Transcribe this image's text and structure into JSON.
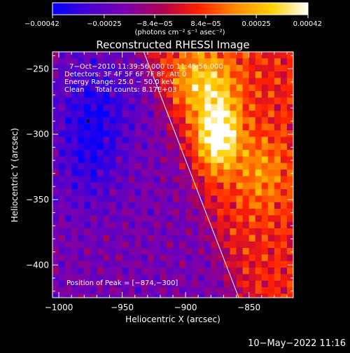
{
  "chart_data": {
    "type": "heatmap",
    "title": "Reconstructed RHESSI Image",
    "xlabel": "Heliocentric X (arcsec)",
    "ylabel": "Heliocentric Y (arcsec)",
    "xlim": [
      -1005,
      -815
    ],
    "ylim": [
      -425,
      -237
    ],
    "x_ticks": [
      {
        "value": -1000,
        "label": "−1000"
      },
      {
        "value": -950,
        "label": "−950"
      },
      {
        "value": -900,
        "label": "−900"
      },
      {
        "value": -850,
        "label": "−850"
      }
    ],
    "y_ticks": [
      {
        "value": -250,
        "label": "−250"
      },
      {
        "value": -300,
        "label": "−300"
      },
      {
        "value": -350,
        "label": "−350"
      },
      {
        "value": -400,
        "label": "−400"
      }
    ],
    "colorbar": {
      "range": [
        -0.00042,
        0.00042
      ],
      "ticks": [
        {
          "value": -0.00042,
          "label": "−0.00042"
        },
        {
          "value": -0.00025,
          "label": "−0.00025"
        },
        {
          "value": -8.4e-05,
          "label": "−8.4e−05"
        },
        {
          "value": 8.4e-05,
          "label": "8.4e−05"
        },
        {
          "value": 0.00025,
          "label": "0.00025"
        },
        {
          "value": 0.00042,
          "label": "0.00042"
        }
      ],
      "unit_label": "(photons cm⁻² s⁻¹ asec⁻²)",
      "colors": [
        "#0000ff",
        "#4a00d0",
        "#7a00b0",
        "#b00050",
        "#ff2000",
        "#ff8a00",
        "#ffd000",
        "#ffffff"
      ]
    },
    "annotations": [
      "7−Oct−2010 11:39:56.000 to 11:45:56.000",
      "Detectors: 3F 4F 5F 6F 7F 8F, Att 0",
      "Energy Range: 25.0 − 50.0 keV",
      "Clean     Total counts: 8.17E+03",
      "Position of Peak = [−874,−300]"
    ],
    "limb_line": {
      "x": [
        -933,
        -858
      ],
      "y": [
        -237,
        -425
      ]
    },
    "peak": {
      "x": -874,
      "y": -300
    }
  },
  "footer": {
    "date": "10−May−2022 11:16"
  }
}
